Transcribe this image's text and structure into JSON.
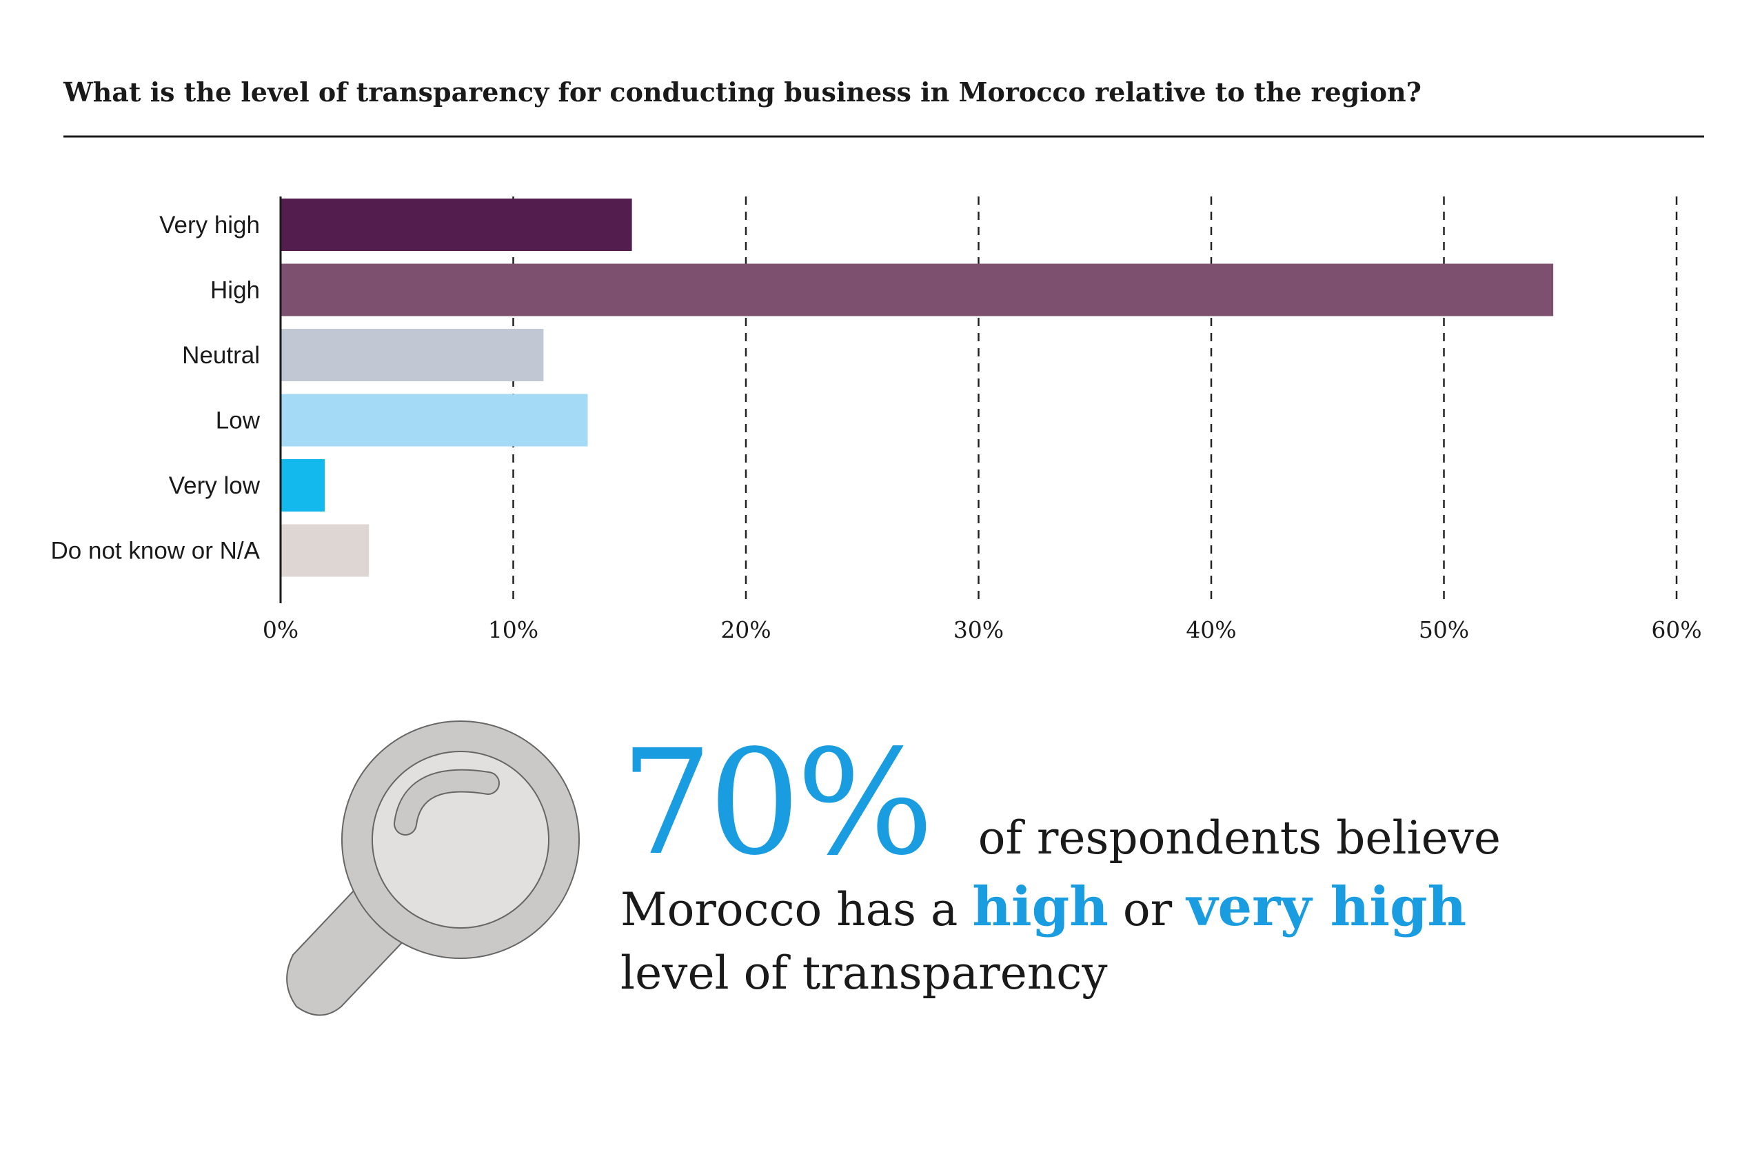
{
  "chart_data": {
    "type": "bar",
    "orientation": "horizontal",
    "title": "What is the level of transparency for conducting business in Morocco relative to the region?",
    "categories": [
      "Very high",
      "High",
      "Neutral",
      "Low",
      "Very low",
      "Do not know or N/A"
    ],
    "values": [
      15.1,
      54.7,
      11.3,
      13.2,
      1.9,
      3.8
    ],
    "colors": [
      "#531e4d",
      "#7d5070",
      "#c2c8d3",
      "#a5daf6",
      "#13b8ec",
      "#ddd6d2"
    ],
    "xlim": [
      0,
      60
    ],
    "xticks": [
      0,
      10,
      20,
      30,
      40,
      50,
      60
    ],
    "xtick_labels": [
      "0%",
      "10%",
      "20%",
      "30%",
      "40%",
      "50%",
      "60%"
    ],
    "grid": "vertical dashed",
    "xlabel": "",
    "ylabel": ""
  },
  "callout": {
    "stat": "70%",
    "text_line1": "of respondents believe",
    "text_line2_start": "Morocco has a ",
    "highlight1": "high",
    "text_or": " or ",
    "highlight2": "very high",
    "text_line3": "level of transparency",
    "accent_color": "#1a9de0",
    "icon": "magnifying-glass-icon"
  }
}
